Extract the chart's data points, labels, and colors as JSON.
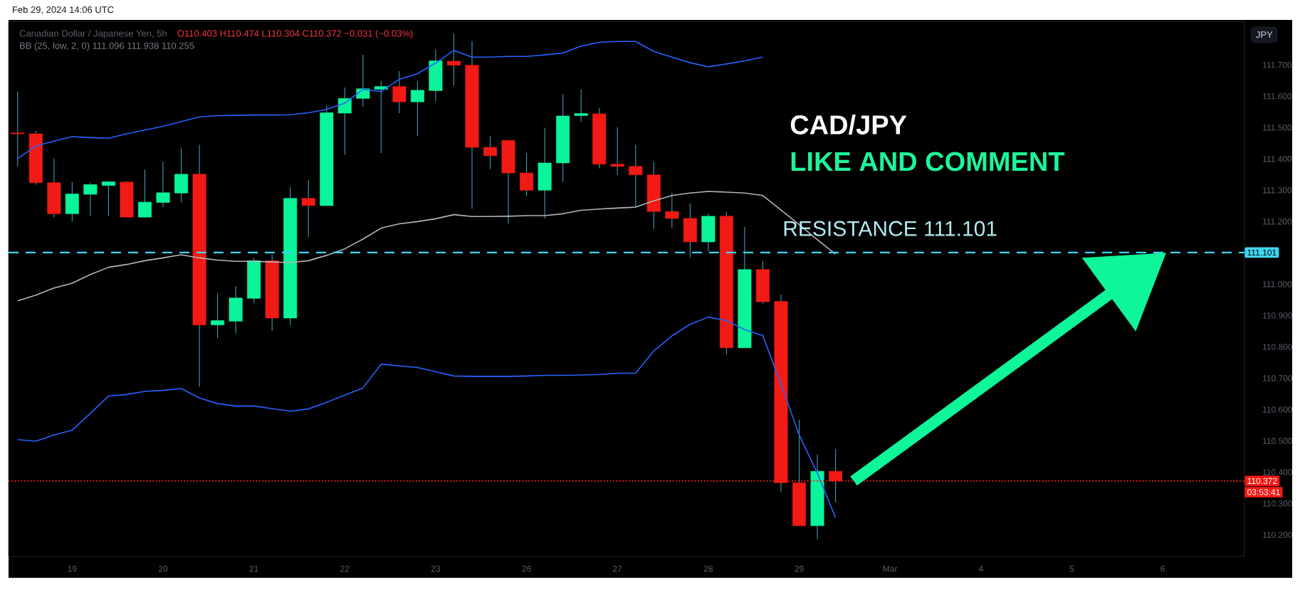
{
  "chart_data": {
    "type": "candlestick",
    "title": "Canadian Dollar / Japanese Yen, 5h",
    "categories": [
      null,
      null,
      null,
      "19",
      null,
      null,
      null,
      null,
      "20",
      null,
      null,
      null,
      null,
      "21",
      null,
      null,
      null,
      null,
      "22",
      null,
      null,
      null,
      null,
      "23",
      null,
      null,
      null,
      null,
      "26",
      null,
      null,
      null,
      null,
      "27",
      null,
      null,
      null,
      null,
      "28",
      null,
      null,
      null,
      null,
      "29",
      null,
      null,
      null,
      null,
      "Mar",
      null,
      null,
      null,
      null,
      "4",
      null,
      null,
      null,
      null,
      "5",
      null,
      null,
      null,
      null,
      "6",
      null,
      null,
      null,
      null
    ],
    "ylim": [
      110.131,
      111.839
    ],
    "yticks": [
      {
        "value": 110.2,
        "label": "110.200"
      },
      {
        "value": 110.3,
        "label": "110.300"
      },
      {
        "value": 110.4,
        "label": "110.400"
      },
      {
        "value": 110.5,
        "label": "110.500"
      },
      {
        "value": 110.6,
        "label": "110.600"
      },
      {
        "value": 110.7,
        "label": "110.700"
      },
      {
        "value": 110.8,
        "label": "110.800"
      },
      {
        "value": 110.9,
        "label": "110.900"
      },
      {
        "value": 111.0,
        "label": "111.000"
      },
      {
        "value": 111.1,
        "label": null
      },
      {
        "value": 111.2,
        "label": "111.200"
      },
      {
        "value": 111.3,
        "label": "111.300"
      },
      {
        "value": 111.4,
        "label": "111.400"
      },
      {
        "value": 111.5,
        "label": "111.500"
      },
      {
        "value": 111.6,
        "label": "111.600"
      },
      {
        "value": 111.7,
        "label": "111.700"
      }
    ],
    "series": [
      {
        "ohlc": [
          [
            111.483,
            111.615,
            111.376,
            111.48
          ],
          [
            111.48,
            111.489,
            111.318,
            111.324
          ],
          [
            111.324,
            111.401,
            111.214,
            111.225
          ],
          [
            111.225,
            111.326,
            111.2,
            111.288
          ],
          [
            111.287,
            111.324,
            111.218,
            111.318
          ],
          [
            111.315,
            111.329,
            111.218,
            111.327
          ],
          [
            111.326,
            111.329,
            111.214,
            111.214
          ],
          [
            111.214,
            111.366,
            111.214,
            111.262
          ],
          [
            111.261,
            111.391,
            111.246,
            111.292
          ],
          [
            111.291,
            111.436,
            111.261,
            111.351
          ],
          [
            111.351,
            111.445,
            110.673,
            110.87
          ],
          [
            110.87,
            110.97,
            110.828,
            110.884
          ],
          [
            110.882,
            110.994,
            110.843,
            110.956
          ],
          [
            110.955,
            111.084,
            110.939,
            111.075
          ],
          [
            111.075,
            111.095,
            110.851,
            110.892
          ],
          [
            110.892,
            111.309,
            110.87,
            111.274
          ],
          [
            111.274,
            111.332,
            111.15,
            111.251
          ],
          [
            111.251,
            111.57,
            111.251,
            111.547
          ],
          [
            111.546,
            111.628,
            111.413,
            111.593
          ],
          [
            111.593,
            111.732,
            111.566,
            111.624
          ],
          [
            111.622,
            111.649,
            111.419,
            111.631
          ],
          [
            111.631,
            111.68,
            111.546,
            111.582
          ],
          [
            111.582,
            111.647,
            111.473,
            111.619
          ],
          [
            111.618,
            111.749,
            111.584,
            111.713
          ],
          [
            111.712,
            111.801,
            111.634,
            111.699
          ],
          [
            111.699,
            111.776,
            111.241,
            111.437
          ],
          [
            111.437,
            111.473,
            111.368,
            111.41
          ],
          [
            111.459,
            111.459,
            111.194,
            111.355
          ],
          [
            111.355,
            111.419,
            111.281,
            111.3
          ],
          [
            111.3,
            111.498,
            111.21,
            111.387
          ],
          [
            111.387,
            111.607,
            111.327,
            111.537
          ],
          [
            111.538,
            111.622,
            111.518,
            111.545
          ],
          [
            111.544,
            111.563,
            111.37,
            111.383
          ],
          [
            111.383,
            111.501,
            111.349,
            111.376
          ],
          [
            111.376,
            111.445,
            111.248,
            111.349
          ],
          [
            111.349,
            111.392,
            111.177,
            111.232
          ],
          [
            111.232,
            111.291,
            111.179,
            111.21
          ],
          [
            111.21,
            111.258,
            111.086,
            111.135
          ],
          [
            111.135,
            111.225,
            111.104,
            111.217
          ],
          [
            111.217,
            111.231,
            110.776,
            110.797
          ],
          [
            110.797,
            111.183,
            110.797,
            111.047
          ],
          [
            111.047,
            111.075,
            110.938,
            110.944
          ],
          [
            110.945,
            110.967,
            110.336,
            110.366
          ],
          [
            110.366,
            110.568,
            110.229,
            110.229
          ],
          [
            110.229,
            110.457,
            110.186,
            110.403
          ],
          [
            110.403,
            110.474,
            110.304,
            110.372
          ],
          null,
          null,
          null,
          null,
          null,
          null,
          null,
          null,
          null,
          null,
          null,
          null,
          null,
          null,
          null,
          null,
          null,
          null,
          null,
          null,
          null,
          null
        ],
        "colors": [
          "#f21a15",
          "#f21a15",
          "#f21a15",
          "#0af59b",
          "#0af59b",
          "#0af59b",
          "#f21a15",
          "#0af59b",
          "#0af59b",
          "#0af59b",
          "#f21a15",
          "#0af59b",
          "#0af59b",
          "#0af59b",
          "#f21a15",
          "#0af59b",
          "#f21a15",
          "#0af59b",
          "#0af59b",
          "#0af59b",
          "#0af59b",
          "#f21a15",
          "#0af59b",
          "#0af59b",
          "#f21a15",
          "#f21a15",
          "#f21a15",
          "#f21a15",
          "#f21a15",
          "#0af59b",
          "#0af59b",
          "#0af59b",
          "#f21a15",
          "#f21a15",
          "#f21a15",
          "#f21a15",
          "#f21a15",
          "#f21a15",
          "#0af59b",
          "#f21a15",
          "#0af59b",
          "#f21a15",
          "#f21a15",
          "#f21a15",
          "#0af59b",
          "#f21a15",
          null,
          null,
          null,
          null,
          null,
          null,
          null,
          null,
          null,
          null,
          null,
          null,
          null,
          null,
          null,
          null,
          null,
          null,
          null,
          null,
          null,
          null
        ]
      },
      {
        "type": "line",
        "color": "#2962ff",
        "values": [
          111.401,
          111.441,
          111.457,
          111.471,
          111.468,
          111.466,
          111.48,
          111.492,
          111.504,
          111.519,
          111.534,
          111.538,
          111.539,
          111.54,
          111.54,
          111.541,
          111.547,
          111.558,
          111.578,
          111.622,
          111.615,
          111.654,
          111.672,
          111.706,
          111.746,
          111.725,
          111.725,
          111.727,
          111.727,
          111.732,
          111.738,
          111.76,
          111.772,
          111.775,
          111.775,
          111.743,
          111.725,
          111.707,
          111.694,
          111.703,
          111.713,
          111.725,
          null,
          null,
          null,
          null,
          null,
          null,
          null,
          null,
          null,
          null,
          null,
          null,
          null,
          null,
          null,
          null,
          null,
          null,
          null,
          null,
          null,
          null,
          null,
          null,
          null,
          null
        ]
      },
      {
        "type": "line",
        "color": "#b2b5be",
        "values": [
          110.947,
          110.965,
          110.988,
          111.003,
          111.031,
          111.054,
          111.063,
          111.075,
          111.084,
          111.094,
          111.084,
          111.077,
          111.073,
          111.073,
          111.071,
          111.069,
          111.075,
          111.092,
          111.113,
          111.144,
          111.179,
          111.193,
          111.2,
          111.209,
          111.222,
          111.216,
          111.216,
          111.217,
          111.219,
          111.219,
          111.225,
          111.236,
          111.24,
          111.243,
          111.246,
          111.266,
          111.283,
          111.291,
          111.296,
          111.294,
          111.291,
          111.283,
          111.237,
          111.19,
          111.142,
          111.096,
          null,
          null,
          null,
          null,
          null,
          null,
          null,
          null,
          null,
          null,
          null,
          null,
          null,
          null,
          null,
          null,
          null,
          null,
          null,
          null,
          null,
          null
        ]
      },
      {
        "type": "line",
        "color": "#2962ff",
        "values": [
          110.504,
          110.499,
          110.519,
          110.534,
          110.588,
          110.643,
          110.648,
          110.658,
          110.661,
          110.667,
          110.637,
          110.619,
          110.611,
          110.611,
          110.603,
          110.595,
          110.602,
          110.623,
          110.646,
          110.669,
          110.745,
          110.739,
          110.734,
          110.721,
          110.707,
          110.706,
          110.706,
          110.706,
          110.707,
          110.709,
          110.709,
          110.71,
          110.712,
          110.716,
          110.716,
          110.787,
          110.835,
          110.872,
          110.895,
          110.884,
          110.855,
          110.836,
          110.681,
          110.519,
          110.397,
          110.255,
          null,
          null,
          null,
          null,
          null,
          null,
          null,
          null,
          null,
          null,
          null,
          null,
          null,
          null,
          null,
          null,
          null,
          null,
          null,
          null,
          null,
          null
        ]
      }
    ],
    "ref_lines": [
      {
        "axis": "y",
        "value": 111.101,
        "label": "111.101",
        "color": "#40d6f0",
        "line_style": "dashed"
      },
      {
        "axis": "y",
        "value": 110.372,
        "label": "110.372",
        "color": "#f21a15",
        "line_style": "dotted"
      }
    ],
    "annotations": [
      "Feb 29, 2024 14:06 UTC",
      "O110.403  H110.474  L110.304  C110.372  −0.031 (−0.03%)",
      "BB (25, low, 2, 0)  111.096  111.938  110.255",
      "CAD/JPY",
      "LIKE AND COMMENT",
      {
        "text": "RESISTANCE  111.101",
        "x": "Mar",
        "y": 111.101
      },
      "JPY",
      "03:53:41"
    ]
  }
}
